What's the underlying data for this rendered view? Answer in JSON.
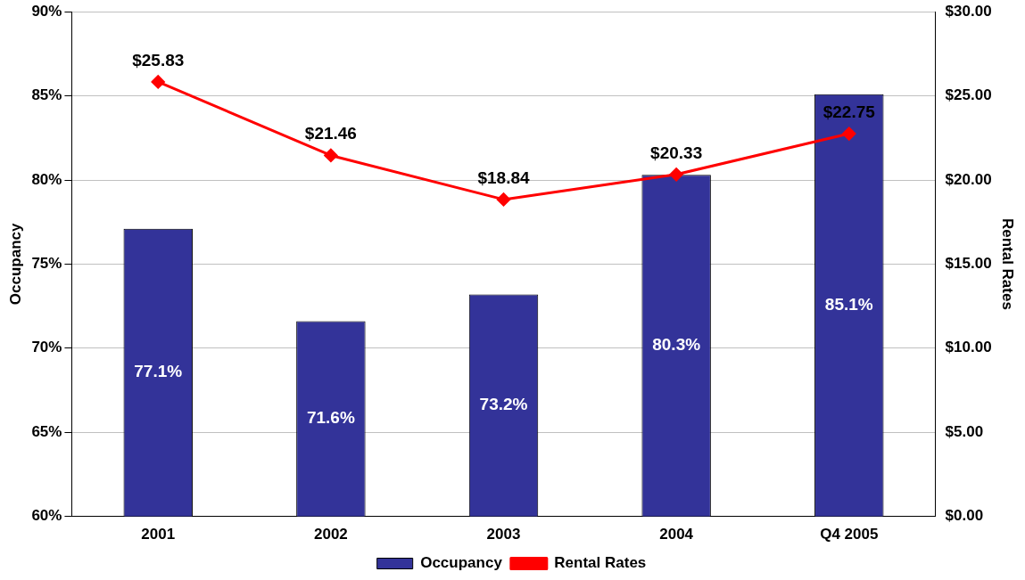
{
  "chart_data": {
    "type": "bar",
    "ylabel": "Occupancy",
    "y2label": "Rental Rates",
    "categories": [
      "2001",
      "2002",
      "2003",
      "2004",
      "Q4 2005"
    ],
    "series": [
      {
        "name": "Occupancy",
        "color": "#333399",
        "values": [
          77.1,
          71.6,
          73.2,
          80.3,
          85.1
        ],
        "value_labels": [
          "77.1%",
          "71.6%",
          "73.2%",
          "80.3%",
          "85.1%"
        ]
      },
      {
        "name": "Rental Rates",
        "type": "line",
        "axis": "y2",
        "color": "#ff0000",
        "marker": "diamond",
        "values": [
          25.83,
          21.46,
          18.84,
          20.33,
          22.75
        ],
        "value_labels": [
          "$25.83",
          "$21.46",
          "$18.84",
          "$20.33",
          "$22.75"
        ]
      }
    ],
    "ylim": [
      60,
      90
    ],
    "yticks": [
      {
        "value": 60,
        "label": "60%"
      },
      {
        "value": 65,
        "label": "65%"
      },
      {
        "value": 70,
        "label": "70%"
      },
      {
        "value": 75,
        "label": "75%"
      },
      {
        "value": 80,
        "label": "80%"
      },
      {
        "value": 85,
        "label": "85%"
      },
      {
        "value": 90,
        "label": "90%"
      }
    ],
    "y2lim": [
      0,
      30
    ],
    "y2ticks": [
      {
        "value": 0,
        "label": "$0.00"
      },
      {
        "value": 5,
        "label": "$5.00"
      },
      {
        "value": 10,
        "label": "$10.00"
      },
      {
        "value": 15,
        "label": "$15.00"
      },
      {
        "value": 20,
        "label": "$20.00"
      },
      {
        "value": 25,
        "label": "$25.00"
      },
      {
        "value": 30,
        "label": "$30.00"
      }
    ],
    "grid": "y",
    "legend": "bottom"
  }
}
